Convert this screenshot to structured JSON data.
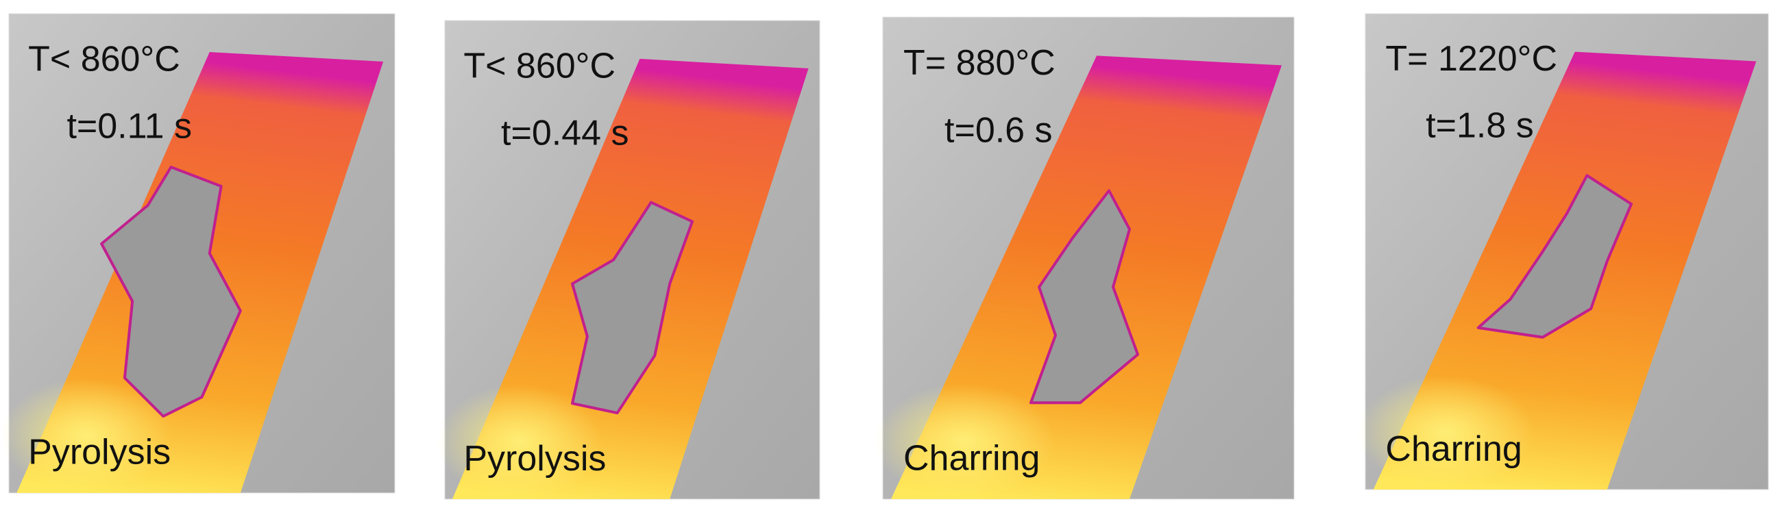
{
  "panels": [
    {
      "temperature": "T< 860°C",
      "time": "t=0.11 s",
      "phase": "Pyrolysis"
    },
    {
      "temperature": "T< 860°C",
      "time": "t=0.44 s",
      "phase": "Pyrolysis"
    },
    {
      "temperature": "T= 880°C",
      "time": "t=0.6 s",
      "phase": "Charring"
    },
    {
      "temperature": "T= 1220°C",
      "time": "t=1.8 s",
      "phase": "Charring"
    }
  ]
}
